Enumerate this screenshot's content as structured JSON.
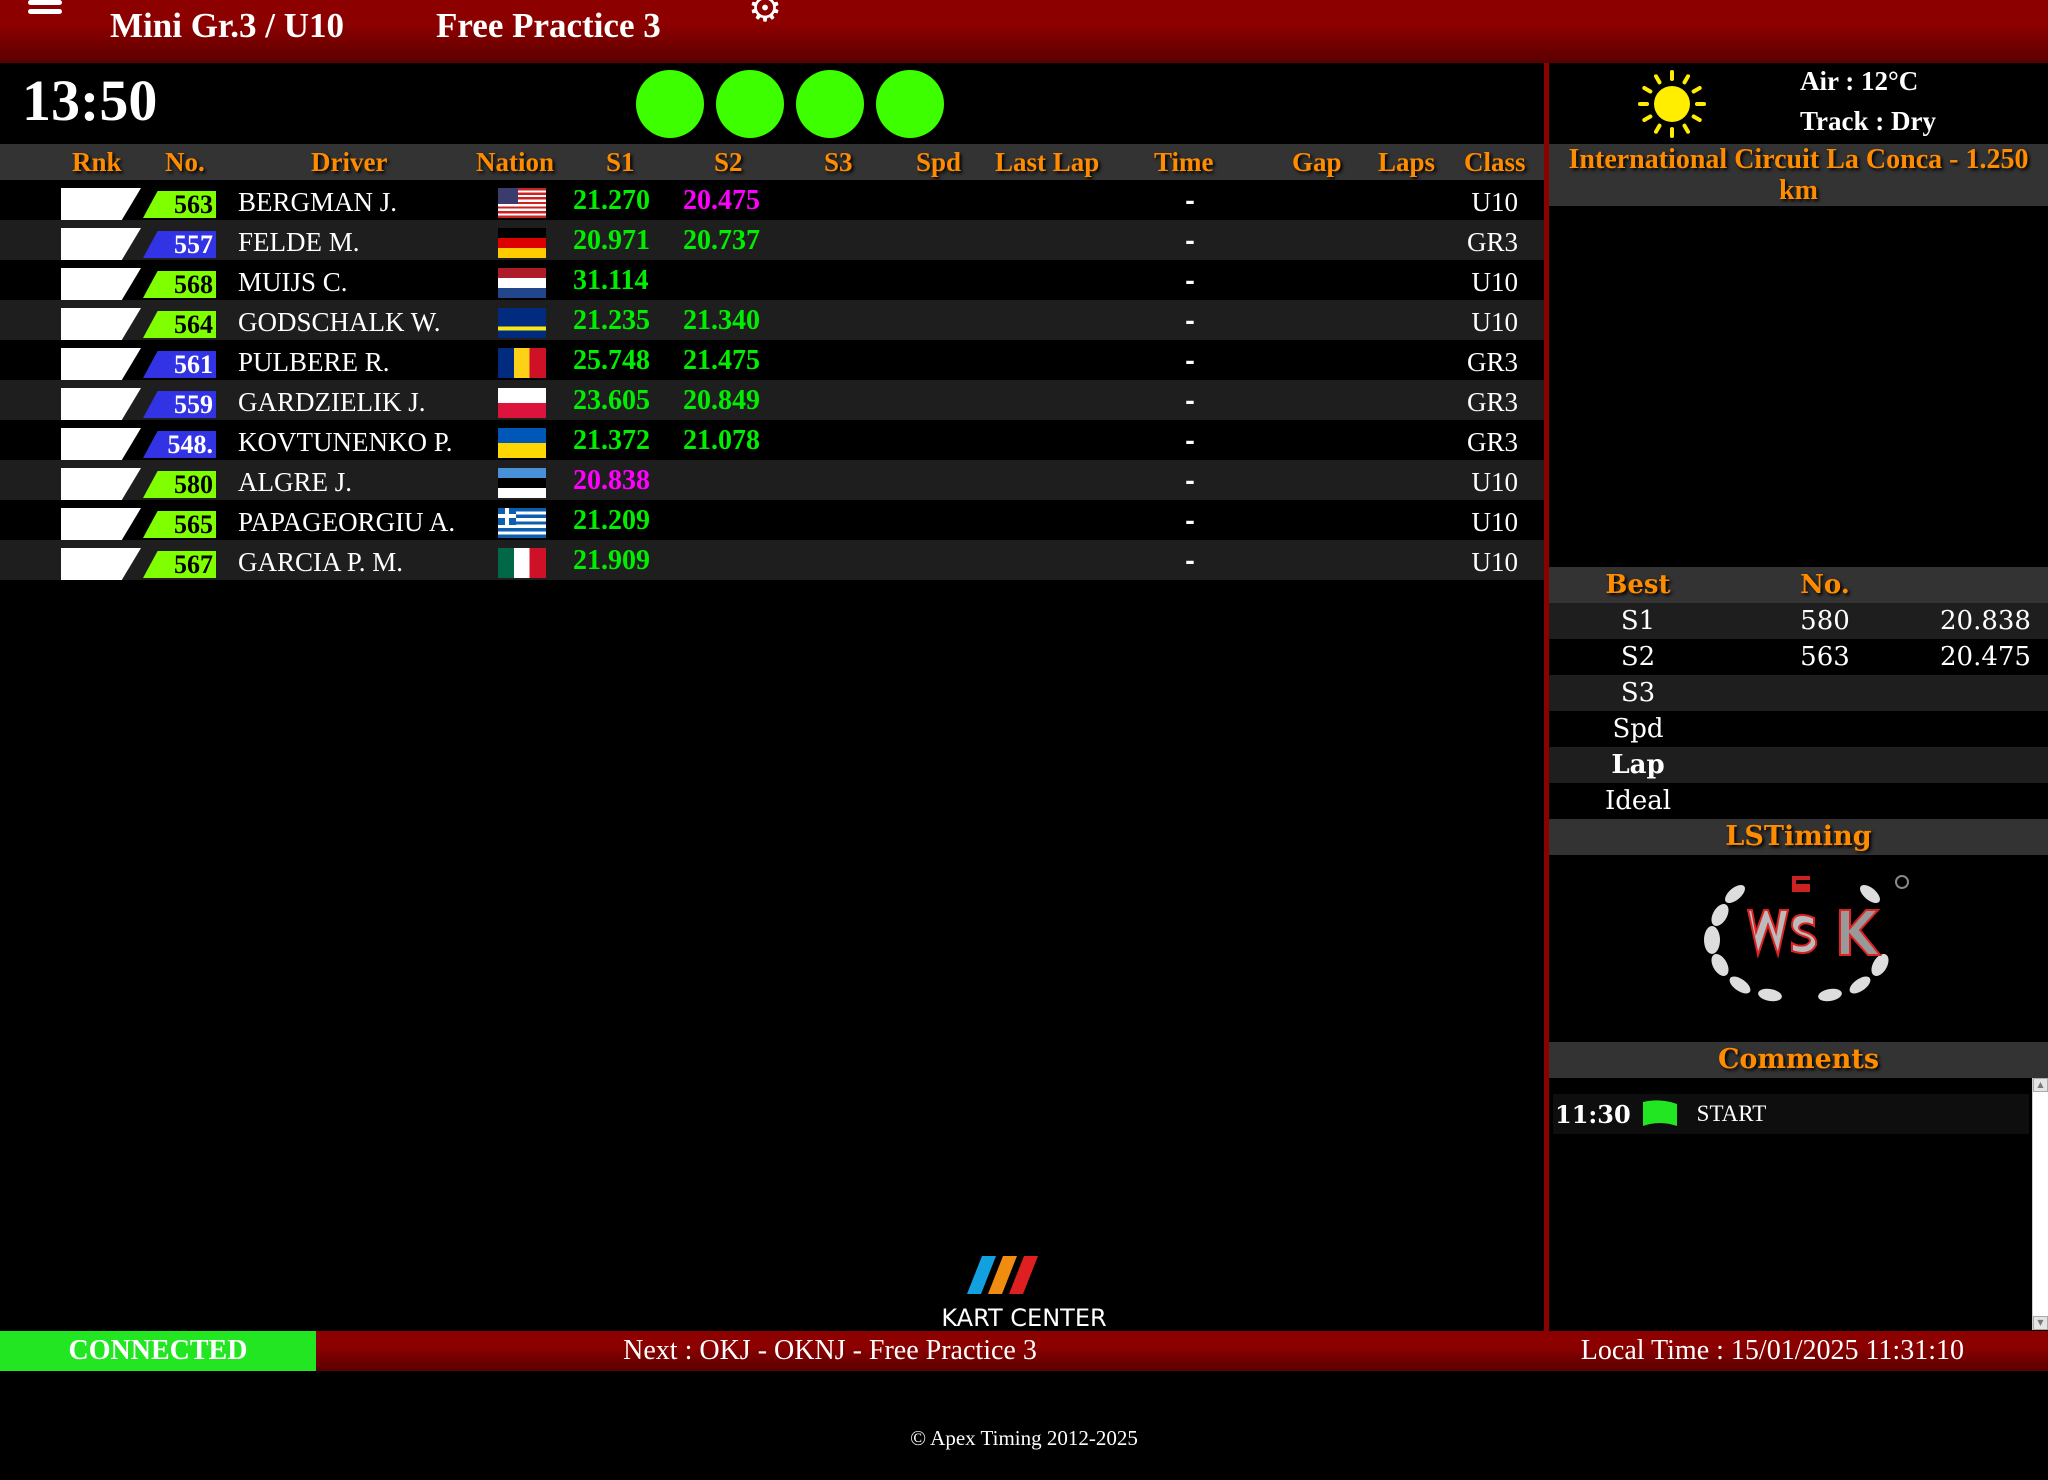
{
  "header": {
    "group": "Mini Gr.3 / U10",
    "session": "Free Practice 3",
    "menu_icon": "hamburger-icon",
    "settings_icon": "gear-icon"
  },
  "clock": "13:50",
  "lights": {
    "count": 4,
    "color": "#3dff00"
  },
  "columns": [
    "Rnk",
    "No.",
    "Driver",
    "Nation",
    "S1",
    "S2",
    "S3",
    "Spd",
    "Last Lap",
    "Time",
    "Gap",
    "Laps",
    "Class"
  ],
  "colors": {
    "u10": "#80ff00",
    "gr3": "#3333e6",
    "sector": "#00ee00",
    "best": "#ff00ff",
    "accent": "#ff8c00",
    "header_red": "#8c0000",
    "connected": "#22e622"
  },
  "rows": [
    {
      "no": "563",
      "driver": "BERGMAN J.",
      "flag": "us",
      "class": "U10",
      "s1": "21.270",
      "s1_best": false,
      "s2": "20.475",
      "s2_best": true,
      "time": "-"
    },
    {
      "no": "557",
      "driver": "FELDE M.",
      "flag": "de",
      "class": "GR3",
      "s1": "20.971",
      "s1_best": false,
      "s2": "20.737",
      "s2_best": false,
      "time": "-"
    },
    {
      "no": "568",
      "driver": "MUIJS C.",
      "flag": "nl",
      "class": "U10",
      "s1": "31.114",
      "s1_best": false,
      "s2": "",
      "s2_best": false,
      "time": "-"
    },
    {
      "no": "564",
      "driver": "GODSCHALK W.",
      "flag": "cw",
      "class": "U10",
      "s1": "21.235",
      "s1_best": false,
      "s2": "21.340",
      "s2_best": false,
      "time": "-"
    },
    {
      "no": "561",
      "driver": "PULBERE R.",
      "flag": "ro",
      "class": "GR3",
      "s1": "25.748",
      "s1_best": false,
      "s2": "21.475",
      "s2_best": false,
      "time": "-"
    },
    {
      "no": "559",
      "driver": "GARDZIELIK J.",
      "flag": "pl",
      "class": "GR3",
      "s1": "23.605",
      "s1_best": false,
      "s2": "20.849",
      "s2_best": false,
      "time": "-"
    },
    {
      "no": "548.",
      "driver": "KOVTUNENKO P.",
      "flag": "ua",
      "class": "GR3",
      "s1": "21.372",
      "s1_best": false,
      "s2": "21.078",
      "s2_best": false,
      "time": "-"
    },
    {
      "no": "580",
      "driver": "ALGRE J.",
      "flag": "ee",
      "class": "U10",
      "s1": "20.838",
      "s1_best": true,
      "s2": "",
      "s2_best": false,
      "time": "-"
    },
    {
      "no": "565",
      "driver": "PAPAGEORGIU A.",
      "flag": "gr",
      "class": "U10",
      "s1": "21.209",
      "s1_best": false,
      "s2": "",
      "s2_best": false,
      "time": "-"
    },
    {
      "no": "567",
      "driver": "GARCIA P. M.",
      "flag": "mx",
      "class": "U10",
      "s1": "21.909",
      "s1_best": false,
      "s2": "",
      "s2_best": false,
      "time": "-"
    }
  ],
  "weather": {
    "icon": "sun-icon",
    "air": "Air : 12°C",
    "track": "Track : Dry"
  },
  "circuit": "International Circuit La Conca - 1.250 km",
  "best": {
    "headers": [
      "Best",
      "No.",
      ""
    ],
    "rows": [
      [
        "S1",
        "580",
        "20.838"
      ],
      [
        "S2",
        "563",
        "20.475"
      ],
      [
        "S3",
        "",
        ""
      ],
      [
        "Spd",
        "",
        ""
      ],
      [
        "Lap",
        "",
        ""
      ],
      [
        "Ideal",
        "",
        ""
      ]
    ]
  },
  "sponsor_title": "LSTiming",
  "sponsor_logo": "WSK PROMOTION 20 YEARS",
  "comments": {
    "title": "Comments",
    "items": [
      {
        "time": "11:30",
        "icon": "green-flag-icon",
        "text": "START"
      }
    ]
  },
  "bottom_logo": "KART CENTER",
  "footer": {
    "status": "CONNECTED",
    "next": "Next : OKJ - OKNJ - Free Practice 3",
    "local_time": "Local Time : 15/01/2025 11:31:10"
  },
  "copyright": "© Apex Timing 2012-2025"
}
